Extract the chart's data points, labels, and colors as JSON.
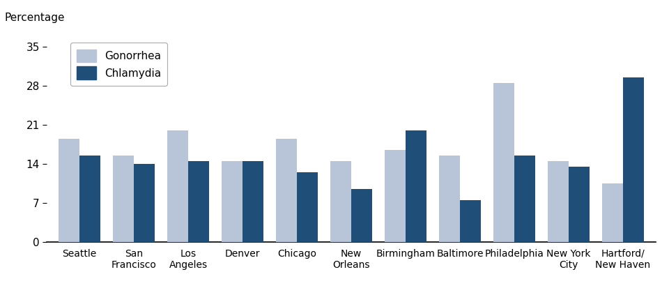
{
  "categories": [
    "Seattle",
    "San\nFrancisco",
    "Los\nAngeles",
    "Denver",
    "Chicago",
    "New\nOrleans",
    "Birmingham",
    "Baltimore",
    "Philadelphia",
    "New York\nCity",
    "Hartford/\nNew Haven"
  ],
  "gonorrhea": [
    18.5,
    15.5,
    20.0,
    14.5,
    18.5,
    14.5,
    16.5,
    15.5,
    28.5,
    14.5,
    10.5
  ],
  "chlamydia": [
    15.5,
    14.0,
    14.5,
    14.5,
    12.5,
    9.5,
    20.0,
    7.5,
    15.5,
    13.5,
    29.5
  ],
  "gonorrhea_color": "#b8c4d8",
  "chlamydia_color": "#1f4e79",
  "title": "Percentage",
  "ylim": [
    0,
    37
  ],
  "yticks": [
    0,
    7,
    14,
    21,
    28,
    35
  ],
  "ytick_labels": [
    "0",
    "7",
    "14",
    "21",
    "28",
    "35"
  ],
  "legend_labels": [
    "Gonorrhea",
    "Chlamydia"
  ],
  "bar_width": 0.38,
  "background_color": "#ffffff"
}
